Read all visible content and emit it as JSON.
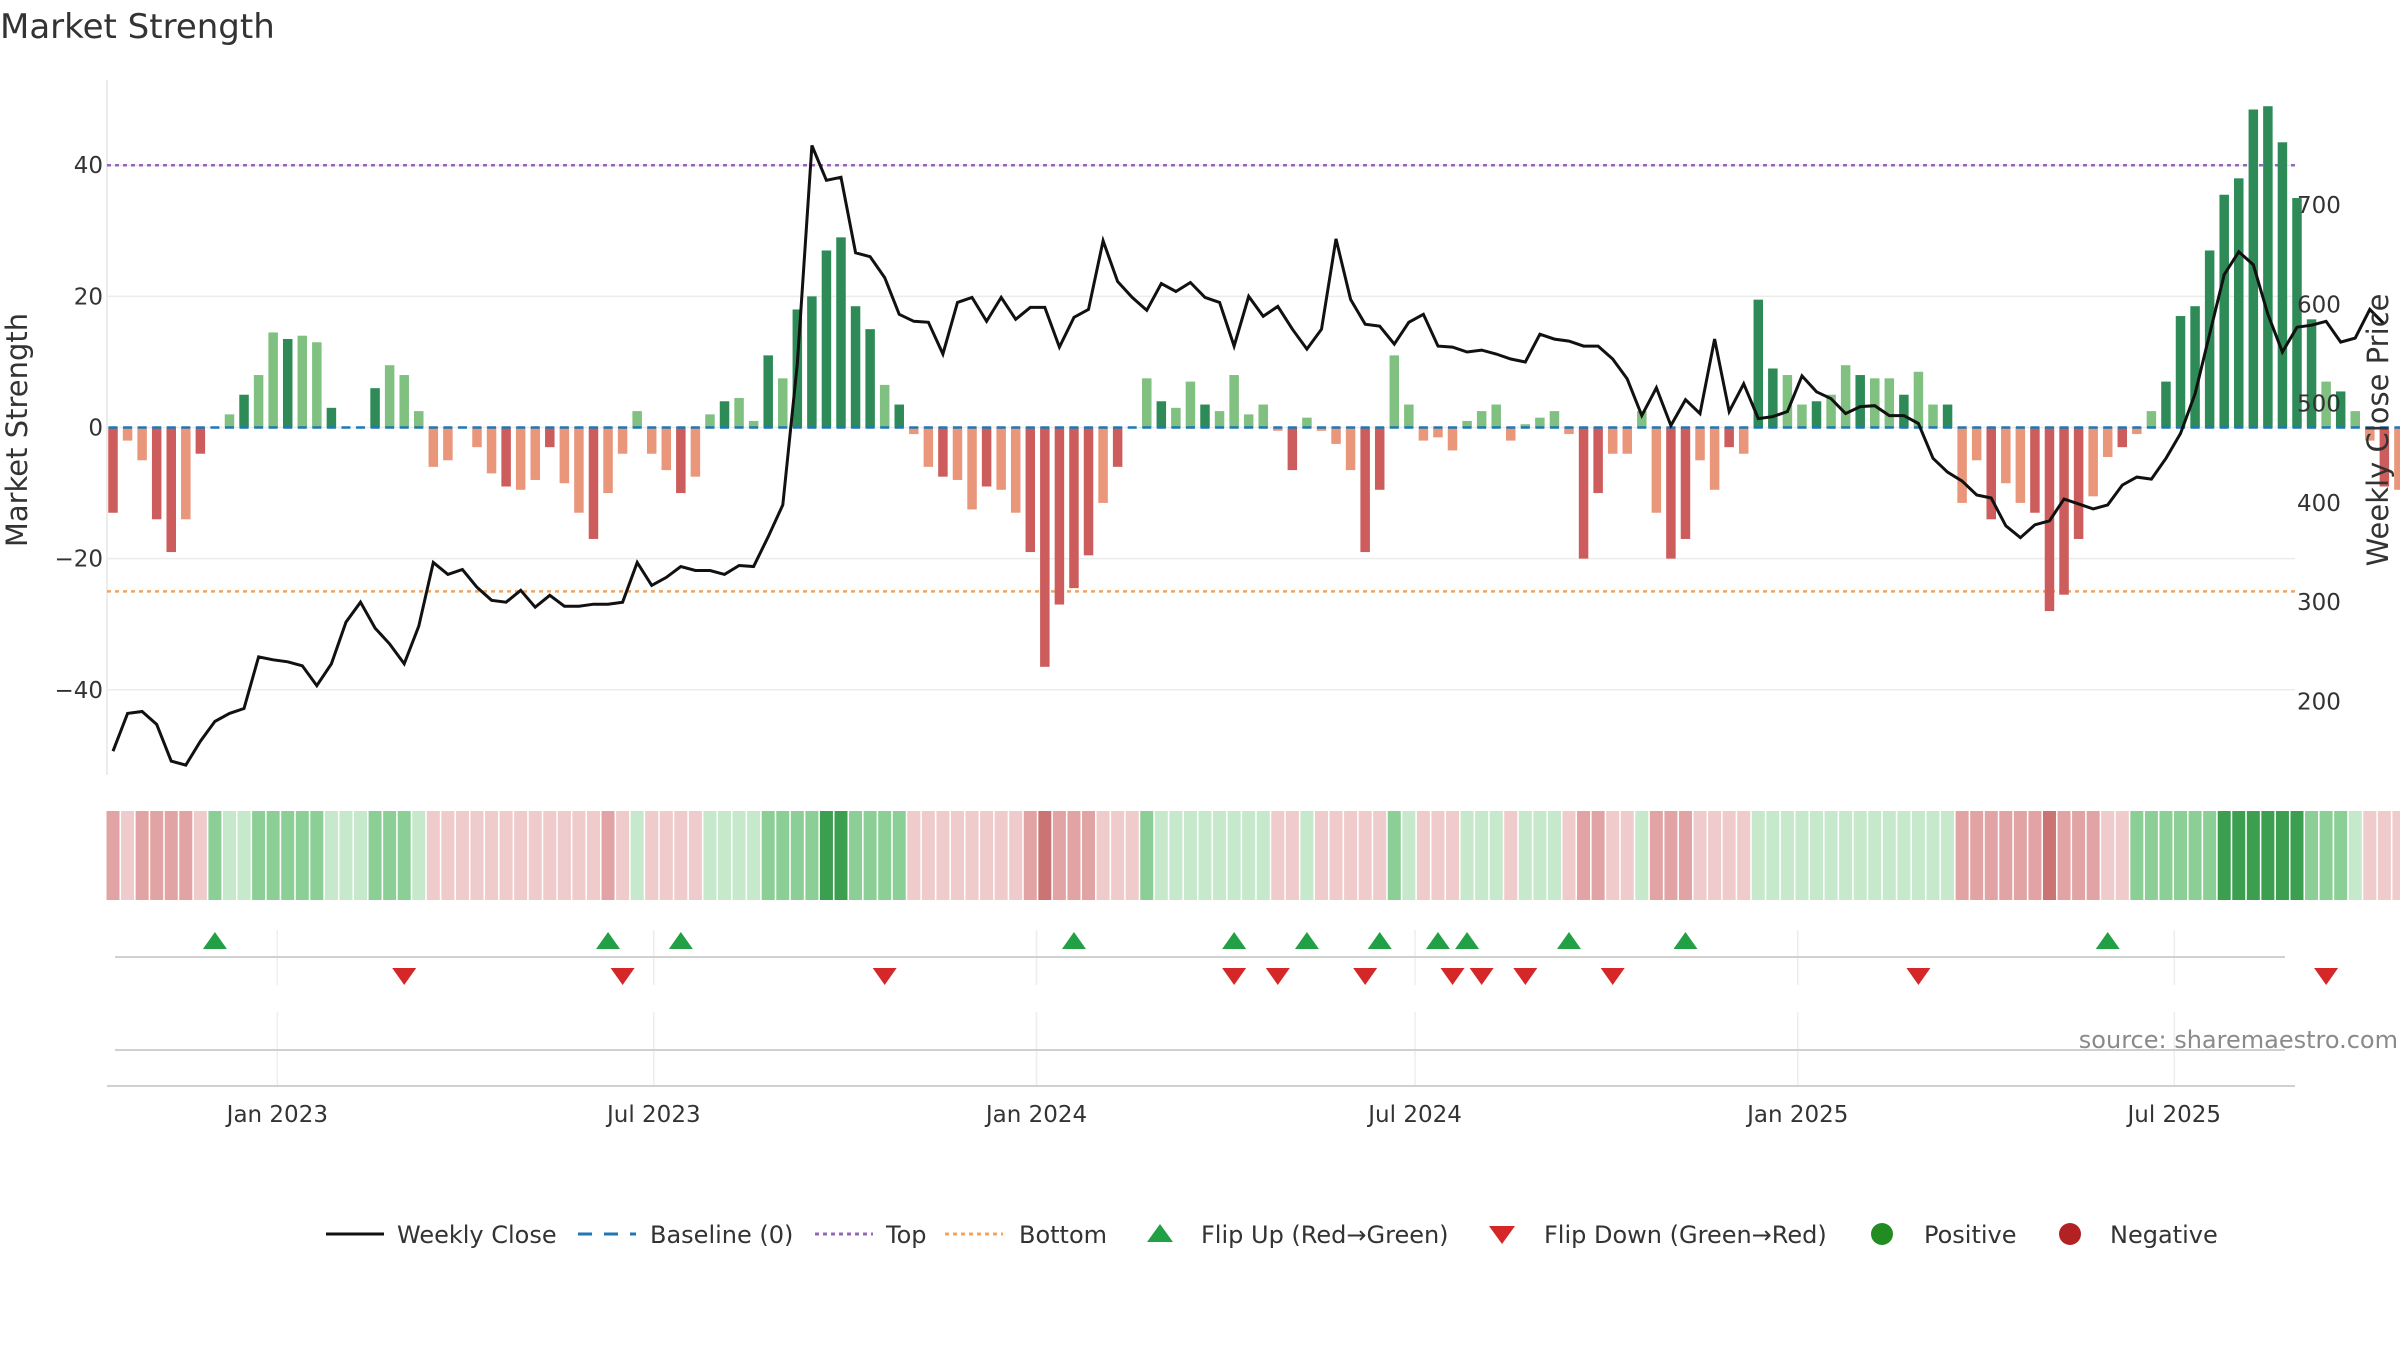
{
  "chart_data": {
    "type": "bar",
    "title": "Market Strength",
    "ylabel_left": "Market Strength",
    "ylabel_right": "Weekly Close Price",
    "ylim_left": [
      -53,
      53
    ],
    "ylim_right": [
      126,
      826
    ],
    "yticks_left": [
      -40,
      -20,
      0,
      20,
      40
    ],
    "yticks_left_labels": [
      "−40",
      "−20",
      "0",
      "20",
      "40"
    ],
    "yticks_right": [
      200,
      300,
      400,
      500,
      600,
      700
    ],
    "yticks_right_labels": [
      "200",
      "300",
      "400",
      "500",
      "600",
      "700"
    ],
    "thresholds": {
      "top": 40,
      "bottom": -25,
      "baseline": 0
    },
    "x_start": "2022-10-14",
    "x_step_days": 7,
    "xticks": [
      {
        "date": "2023-01-01",
        "label": "Jan 2023"
      },
      {
        "date": "2023-07-01",
        "label": "Jul 2023"
      },
      {
        "date": "2024-01-01",
        "label": "Jan 2024"
      },
      {
        "date": "2024-07-01",
        "label": "Jul 2024"
      },
      {
        "date": "2025-01-01",
        "label": "Jan 2025"
      },
      {
        "date": "2025-07-01",
        "label": "Jul 2025"
      }
    ],
    "series": [
      {
        "name": "Market Strength",
        "kind": "bar",
        "values": [
          -13,
          -2,
          -5,
          -14,
          -19,
          -14,
          -4,
          0,
          2,
          5,
          8,
          14.5,
          13.5,
          14,
          13,
          3,
          0,
          0,
          6,
          9.5,
          8,
          2.5,
          -6,
          -5,
          0,
          -3,
          -7,
          -9,
          -9.5,
          -8,
          -3,
          -8.5,
          -13,
          -17,
          -10,
          -4,
          2.5,
          -4,
          -6.5,
          -10,
          -7.5,
          2,
          4,
          4.5,
          1,
          11,
          7.5,
          18,
          20,
          27,
          29,
          18.5,
          15,
          6.5,
          3.5,
          -1,
          -6,
          -7.5,
          -8,
          -12.5,
          -9,
          -9.5,
          -13,
          -19,
          -36.5,
          -27,
          -24.5,
          -19.5,
          -11.5,
          -6,
          0,
          7.5,
          4,
          3,
          7,
          3.5,
          2.5,
          8,
          2,
          3.5,
          -0.5,
          -6.5,
          1.5,
          -0.5,
          -2.5,
          -6.5,
          -19,
          -9.5,
          11,
          3.5,
          -2,
          -1.5,
          -3.5,
          1,
          2.5,
          3.5,
          -2,
          0.5,
          1.5,
          2.5,
          -1,
          -20,
          -10,
          -4,
          -4,
          2.5,
          -13,
          -20,
          -17,
          -5,
          -9.5,
          -3,
          -4,
          19.5,
          9,
          8,
          3.5,
          4,
          5,
          9.5,
          8,
          7.5,
          7.5,
          5,
          8.5,
          3.5,
          3.5,
          -11.5,
          -5,
          -14,
          -8.5,
          -11.5,
          -13,
          -28,
          -25.5,
          -17,
          -10.5,
          -4.5,
          -3,
          -1,
          2.5,
          7,
          17,
          18.5,
          27,
          35.5,
          38,
          48.5,
          49,
          43.5,
          35,
          16.5,
          7,
          5.5,
          2.5,
          -2,
          -9,
          -9.5,
          -9,
          -13.5
        ]
      },
      {
        "name": "Weekly Close",
        "kind": "line",
        "color": "#111111",
        "values": [
          150,
          188,
          190,
          177,
          140,
          136,
          160,
          180,
          188,
          193,
          245,
          242,
          240,
          236,
          216,
          238,
          280,
          300,
          274,
          258,
          238,
          276,
          340,
          328,
          333,
          315,
          302,
          300,
          312,
          295,
          307,
          296,
          296,
          298,
          298,
          300,
          340,
          317,
          325,
          336,
          332,
          332,
          328,
          337,
          336,
          366,
          398,
          540,
          760,
          725,
          728,
          652,
          648,
          627,
          590,
          583,
          582,
          550,
          602,
          607,
          583,
          607,
          585,
          597,
          597,
          557,
          587,
          595,
          664,
          623,
          607,
          594,
          621,
          613,
          622,
          607,
          602,
          558,
          608,
          588,
          598,
          575,
          555,
          575,
          666,
          605,
          580,
          578,
          560,
          582,
          590,
          558,
          557,
          552,
          554,
          550,
          545,
          542,
          570,
          565,
          563,
          558,
          558,
          545,
          525,
          488,
          516,
          478,
          504,
          490,
          565,
          492,
          520,
          485,
          487,
          492,
          528,
          512,
          505,
          490,
          497,
          498,
          488,
          488,
          480,
          445,
          431,
          422,
          408,
          405,
          377,
          365,
          378,
          382,
          404,
          399,
          394,
          398,
          418,
          426,
          424,
          445,
          470,
          510,
          570,
          630,
          653,
          640,
          590,
          552,
          577,
          579,
          583,
          562,
          566,
          595,
          580
        ]
      }
    ],
    "strength_strip": [
      "rm",
      "rl",
      "rm",
      "rm",
      "rm",
      "rm",
      "rl",
      "gm",
      "gl",
      "gl",
      "gm",
      "gm",
      "gm",
      "gm",
      "gm",
      "gl",
      "gl",
      "gl",
      "gm",
      "gm",
      "gm",
      "gl",
      "rl",
      "rl",
      "rl",
      "rl",
      "rl",
      "rl",
      "rl",
      "rl",
      "rl",
      "rl",
      "rl",
      "rl",
      "rm",
      "rl",
      "gl",
      "rl",
      "rl",
      "rl",
      "rl",
      "gl",
      "gl",
      "gl",
      "gl",
      "gm",
      "gm",
      "gm",
      "gm",
      "gs",
      "gs",
      "gm",
      "gm",
      "gm",
      "gm",
      "rl",
      "rl",
      "rl",
      "rl",
      "rl",
      "rl",
      "rl",
      "rl",
      "rm",
      "rs",
      "rm",
      "rm",
      "rm",
      "rl",
      "rl",
      "rl",
      "gm",
      "gl",
      "gl",
      "gl",
      "gl",
      "gl",
      "gl",
      "gl",
      "gl",
      "rl",
      "rl",
      "gl",
      "rl",
      "rl",
      "rl",
      "rl",
      "rl",
      "gm",
      "gl",
      "rl",
      "rl",
      "rl",
      "gl",
      "gl",
      "gl",
      "rl",
      "gl",
      "gl",
      "gl",
      "rl",
      "rm",
      "rm",
      "rl",
      "rl",
      "gl",
      "rm",
      "rm",
      "rm",
      "rl",
      "rl",
      "rl",
      "rl",
      "gl",
      "gl",
      "gl",
      "gl",
      "gl",
      "gl",
      "gl",
      "gl",
      "gl",
      "gl",
      "gl",
      "gl",
      "gl",
      "gl",
      "rm",
      "rm",
      "rm",
      "rm",
      "rm",
      "rm",
      "rs",
      "rm",
      "rm",
      "rm",
      "rl",
      "rl",
      "gm",
      "gm",
      "gm",
      "gm",
      "gm",
      "gm",
      "gs",
      "gs",
      "gs",
      "gs",
      "gs",
      "gs",
      "gm",
      "gm",
      "gm",
      "gl",
      "rl",
      "rl",
      "rl",
      "rl",
      "rl"
    ],
    "flip_up_weeks": [
      7,
      34,
      39,
      66,
      77,
      82,
      87,
      91,
      93,
      100,
      108,
      137
    ],
    "flip_down_weeks": [
      20,
      35,
      53,
      77,
      80,
      86,
      92,
      94,
      97,
      103,
      124,
      152
    ],
    "legend": [
      {
        "label": "Weekly Close",
        "kind": "line"
      },
      {
        "label": "Baseline (0)",
        "kind": "dash"
      },
      {
        "label": "Top",
        "kind": "dotted_purple"
      },
      {
        "label": "Bottom",
        "kind": "dotted_orange"
      },
      {
        "label": "Flip Up (Red→Green)",
        "kind": "tri_up"
      },
      {
        "label": "Flip Down (Green→Red)",
        "kind": "tri_down"
      },
      {
        "label": "Positive",
        "kind": "dot_green"
      },
      {
        "label": "Negative",
        "kind": "dot_red"
      }
    ],
    "source": "source: sharemaestro.com",
    "colors": {
      "pos_strong": "#2e8b57",
      "pos_light": "#80c080",
      "neg_strong": "#cd5c5c",
      "neg_light": "#e9967a",
      "top_line": "#9467bd",
      "bottom_line": "#f4a460",
      "baseline": "#1f77b4",
      "flip_up": "#22a046",
      "flip_down": "#d62728",
      "positive_dot": "#228b22",
      "negative_dot": "#b22222",
      "strip": {
        "gs": "#3c9f50",
        "gm": "#8ccf96",
        "gl": "#c6e8cb",
        "rs": "#cb7474",
        "rm": "#e1a3a3",
        "rl": "#efcbcb"
      }
    }
  }
}
